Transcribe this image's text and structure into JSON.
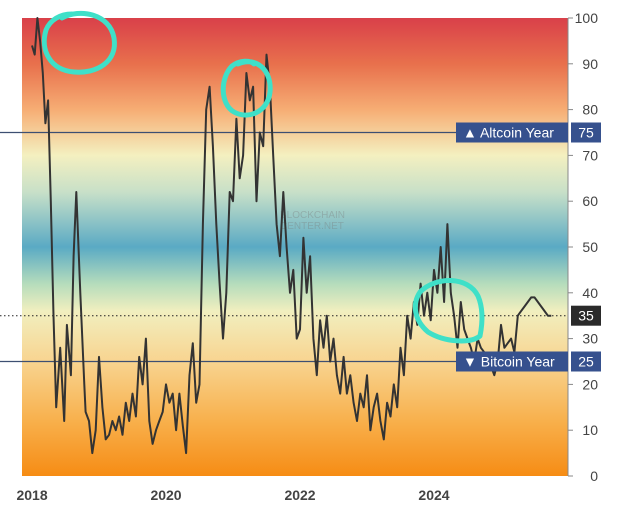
{
  "watermark": [
    "BLOCKCHAIN",
    "CENTER.NET"
  ],
  "chart_data": {
    "type": "line",
    "title": "",
    "xlabel": "",
    "ylabel": "",
    "ylim": [
      0,
      100
    ],
    "xlim": [
      2017.85,
      2026.0
    ],
    "y_ticks": [
      0,
      10,
      20,
      30,
      40,
      50,
      60,
      70,
      80,
      90,
      100
    ],
    "x_ticks": [
      "2018",
      "2020",
      "2022",
      "2024"
    ],
    "background_gradient": [
      {
        "value": 100,
        "color": "#d9404a"
      },
      {
        "value": 90,
        "color": "#e8704c"
      },
      {
        "value": 80,
        "color": "#f6ad74"
      },
      {
        "value": 70,
        "color": "#f4f0c0"
      },
      {
        "value": 62,
        "color": "#c8e0c8"
      },
      {
        "value": 50,
        "color": "#5aaac4"
      },
      {
        "value": 42,
        "color": "#b5dcbc"
      },
      {
        "value": 36,
        "color": "#f1efbf"
      },
      {
        "value": 25,
        "color": "#f8d490"
      },
      {
        "value": 12,
        "color": "#f8b04c"
      },
      {
        "value": 0,
        "color": "#f68c14"
      }
    ],
    "reference_lines": [
      {
        "value": 75,
        "label": "Altcoin Year",
        "badge": "75",
        "marker": "▲",
        "style": "solid"
      },
      {
        "value": 25,
        "label": "Bitcoin Year",
        "badge": "25",
        "marker": "▼",
        "style": "solid"
      },
      {
        "value": 35,
        "label": "",
        "badge": "35",
        "marker": "",
        "style": "dotted"
      }
    ],
    "series": [
      {
        "color": "#333333",
        "x": [
          2018.0,
          2018.04,
          2018.08,
          2018.12,
          2018.16,
          2018.2,
          2018.24,
          2018.28,
          2018.32,
          2018.36,
          2018.42,
          2018.48,
          2018.52,
          2018.58,
          2018.62,
          2018.66,
          2018.72,
          2018.78,
          2018.8,
          2018.85,
          2018.9,
          2018.95,
          2019.0,
          2019.05,
          2019.1,
          2019.15,
          2019.2,
          2019.25,
          2019.3,
          2019.35,
          2019.4,
          2019.45,
          2019.5,
          2019.55,
          2019.6,
          2019.65,
          2019.7,
          2019.75,
          2019.8,
          2019.85,
          2019.9,
          2019.95,
          2020.0,
          2020.05,
          2020.1,
          2020.15,
          2020.2,
          2020.25,
          2020.3,
          2020.35,
          2020.4,
          2020.45,
          2020.5,
          2020.55,
          2020.6,
          2020.65,
          2020.7,
          2020.75,
          2020.8,
          2020.85,
          2020.9,
          2020.95,
          2021.0,
          2021.05,
          2021.1,
          2021.15,
          2021.2,
          2021.25,
          2021.3,
          2021.35,
          2021.4,
          2021.45,
          2021.5,
          2021.55,
          2021.6,
          2021.65,
          2021.7,
          2021.75,
          2021.8,
          2021.85,
          2021.9,
          2021.95,
          2022.0,
          2022.05,
          2022.1,
          2022.15,
          2022.2,
          2022.25,
          2022.3,
          2022.35,
          2022.4,
          2022.45,
          2022.5,
          2022.55,
          2022.6,
          2022.65,
          2022.7,
          2022.75,
          2022.8,
          2022.85,
          2022.9,
          2022.95,
          2023.0,
          2023.05,
          2023.1,
          2023.15,
          2023.2,
          2023.25,
          2023.3,
          2023.35,
          2023.4,
          2023.45,
          2023.5,
          2023.55,
          2023.6,
          2023.65,
          2023.7,
          2023.75,
          2023.8,
          2023.85,
          2023.9,
          2023.95,
          2024.0,
          2024.05,
          2024.1,
          2024.15,
          2024.2,
          2024.25,
          2024.3,
          2024.35,
          2024.4,
          2024.45,
          2024.5,
          2024.55,
          2024.6,
          2024.65,
          2024.7,
          2024.75,
          2024.8,
          2024.85,
          2024.9,
          2024.95,
          2025.0,
          2025.05,
          2025.1,
          2025.15,
          2025.2,
          2025.25,
          2025.3,
          2025.35,
          2025.4,
          2025.45,
          2025.5,
          2025.55,
          2025.6,
          2025.65,
          2025.7,
          2025.75
        ],
        "values": [
          94,
          92,
          100,
          95,
          88,
          77,
          82,
          60,
          35,
          15,
          28,
          12,
          33,
          22,
          48,
          62,
          40,
          20,
          14,
          12,
          5,
          10,
          26,
          15,
          8,
          9,
          12,
          10,
          13,
          9,
          16,
          12,
          18,
          13,
          26,
          20,
          30,
          12,
          7,
          10,
          12,
          14,
          20,
          16,
          18,
          10,
          18,
          11,
          5,
          22,
          29,
          16,
          20,
          55,
          80,
          85,
          72,
          55,
          42,
          30,
          40,
          62,
          60,
          78,
          65,
          70,
          88,
          82,
          85,
          60,
          75,
          72,
          92,
          85,
          70,
          55,
          48,
          62,
          50,
          40,
          45,
          30,
          32,
          52,
          40,
          48,
          30,
          22,
          34,
          28,
          35,
          25,
          30,
          22,
          18,
          26,
          18,
          22,
          16,
          12,
          18,
          15,
          22,
          10,
          15,
          18,
          12,
          8,
          16,
          13,
          20,
          15,
          28,
          22,
          35,
          30,
          38,
          33,
          42,
          35,
          40,
          34,
          45,
          40,
          50,
          38,
          55,
          40,
          35,
          28,
          38,
          32,
          30,
          28,
          25,
          30,
          28,
          27,
          26,
          24,
          22,
          25,
          33,
          28,
          29,
          30,
          27,
          35,
          36,
          37,
          38,
          39,
          39,
          38,
          37,
          36,
          35,
          35
        ]
      }
    ]
  },
  "annotations": [
    {
      "shape": "circle",
      "color": "#3fe0c8"
    },
    {
      "shape": "circle",
      "color": "#3fe0c8"
    },
    {
      "shape": "circle",
      "color": "#3fe0c8"
    }
  ]
}
